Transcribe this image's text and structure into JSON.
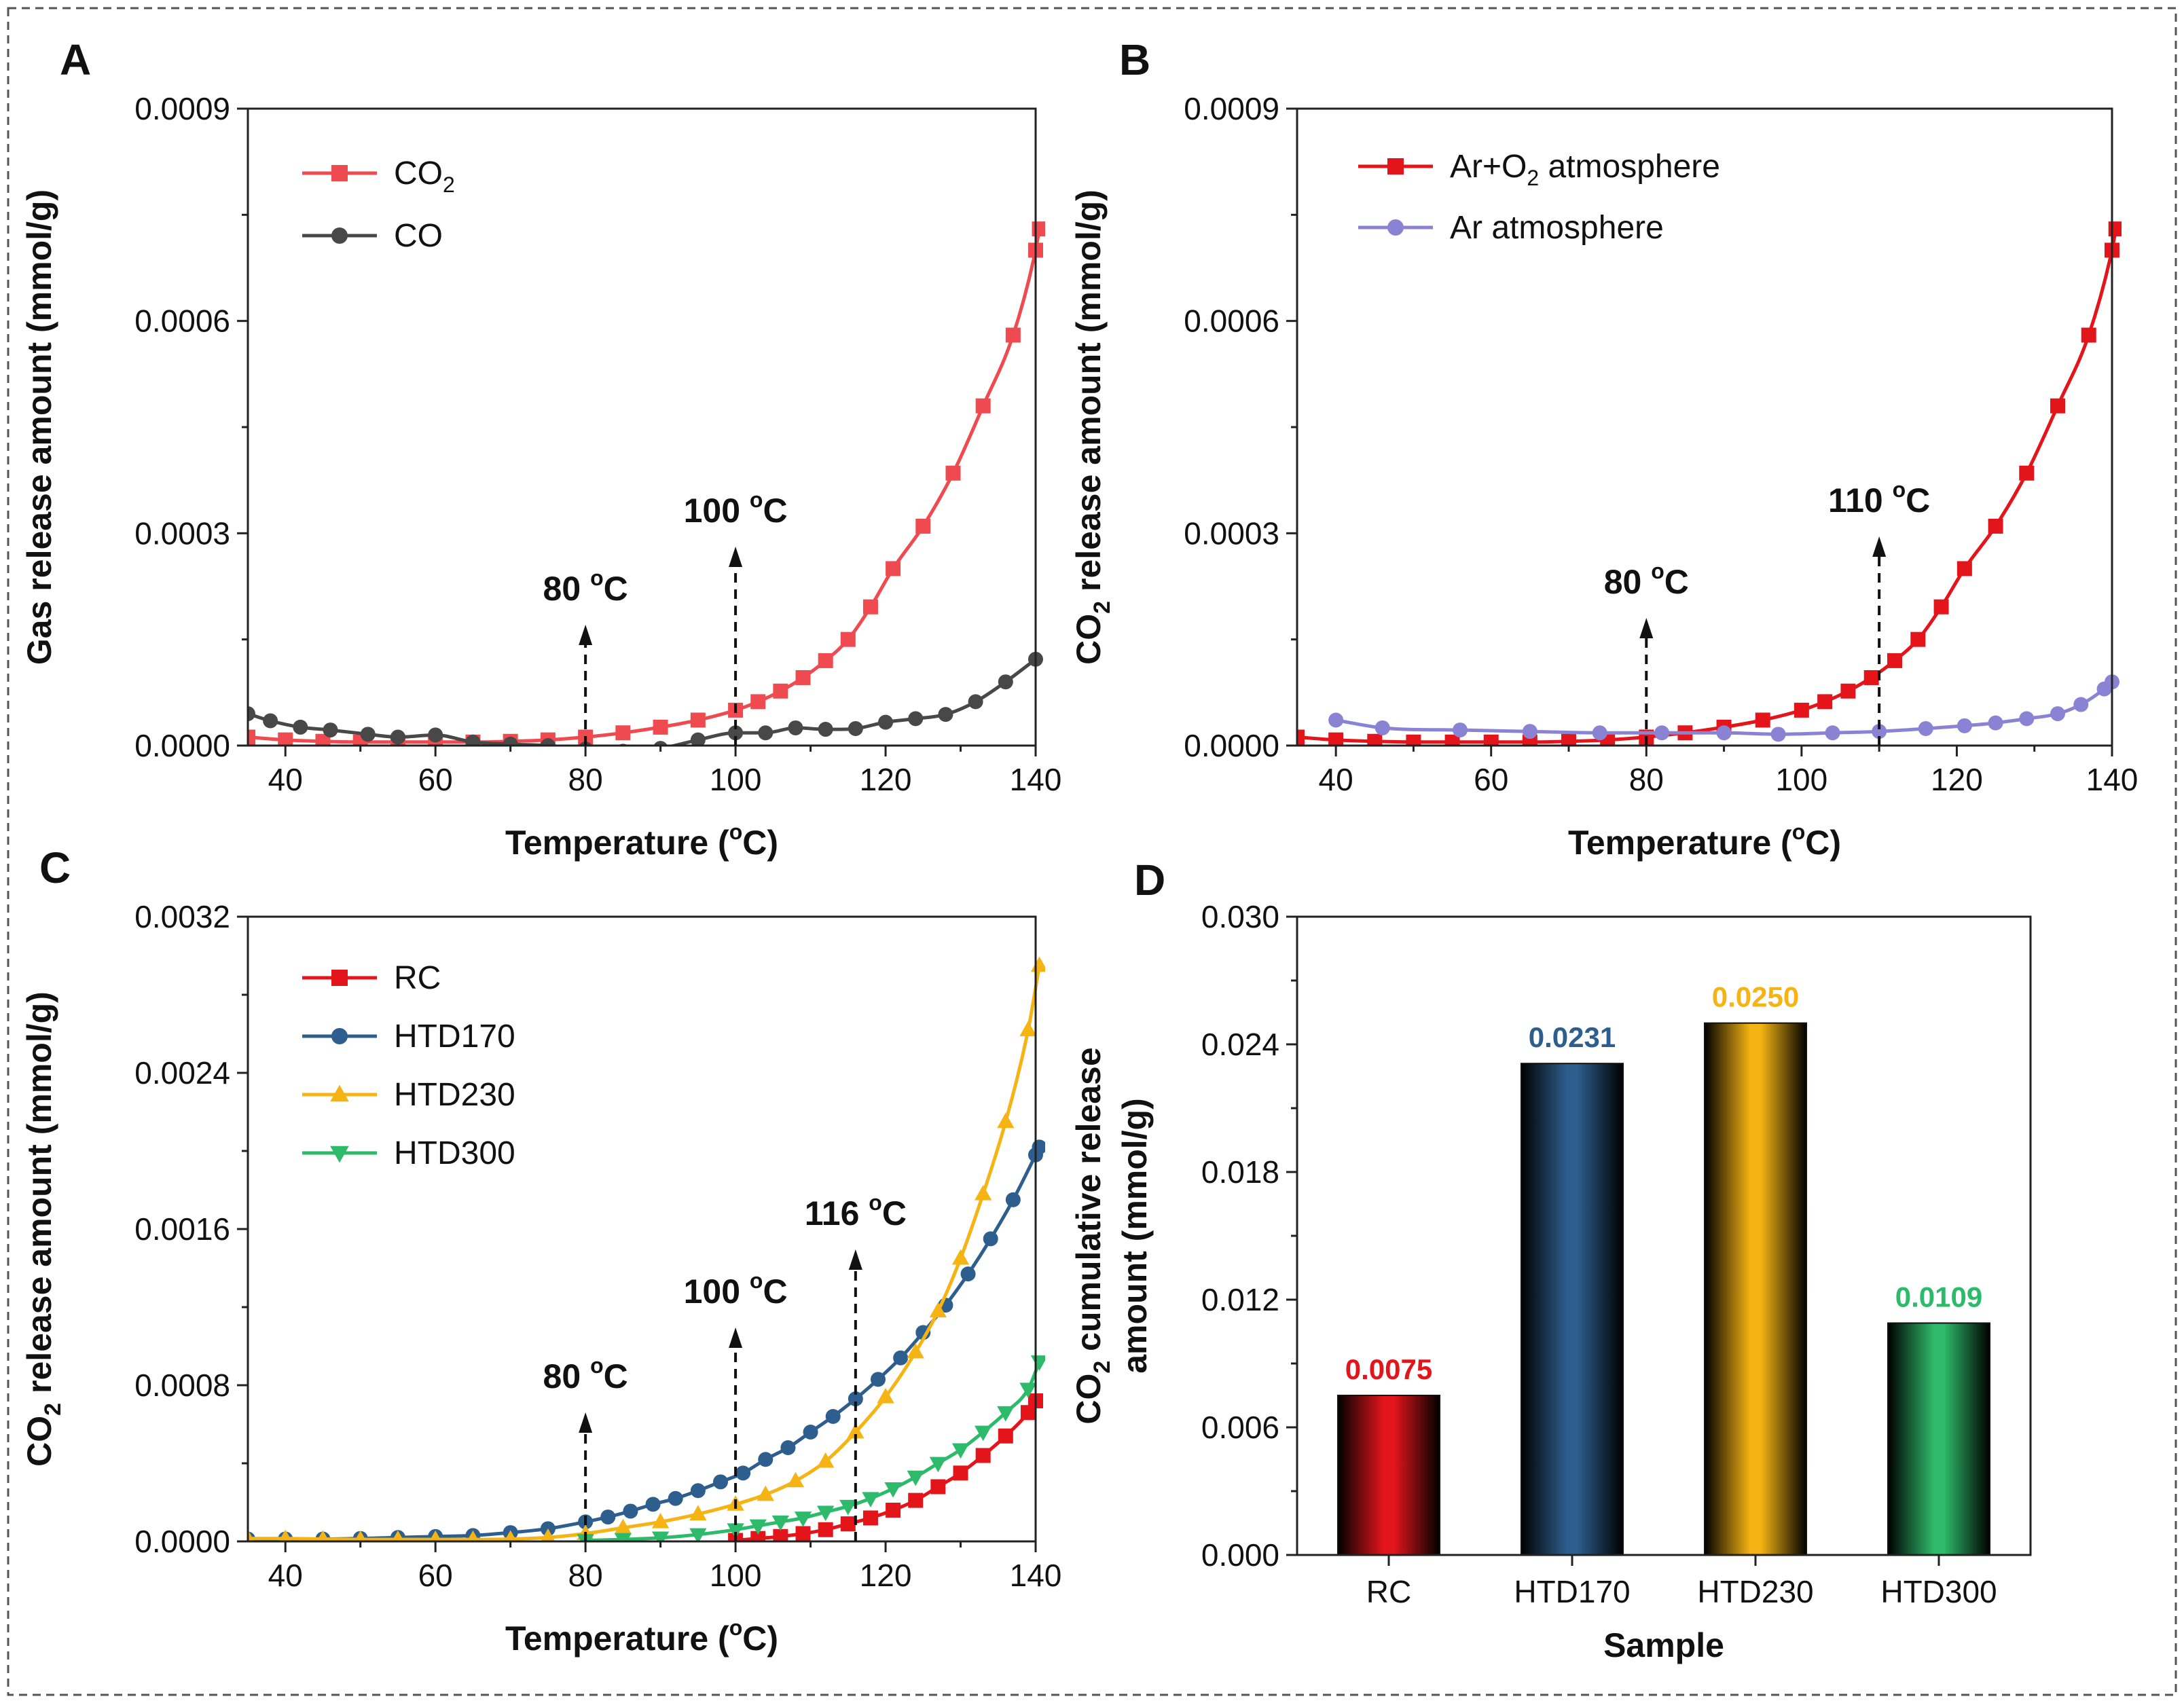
{
  "chart_data": [
    {
      "panel": "A",
      "type": "line",
      "xlabel": "Temperature (°C)",
      "ylabel": "Gas release amount (mmol/g)",
      "xlim": [
        35,
        140
      ],
      "ylim": [
        0,
        0.0009
      ],
      "x_ticks": [
        "40",
        "60",
        "80",
        "100",
        "120",
        "140"
      ],
      "y_ticks": [
        "0.0000",
        "0.0003",
        "0.0006",
        "0.0009"
      ],
      "legend_position": "top-left",
      "series": [
        {
          "name": "CO₂",
          "color": "#ef4a4f",
          "marker": "square",
          "points": [
            [
              35,
              1.2e-05
            ],
            [
              40,
              8e-06
            ],
            [
              45,
              6e-06
            ],
            [
              50,
              5e-06
            ],
            [
              55,
              5e-06
            ],
            [
              60,
              5e-06
            ],
            [
              65,
              5e-06
            ],
            [
              70,
              6e-06
            ],
            [
              75,
              8e-06
            ],
            [
              80,
              1.2e-05
            ],
            [
              85,
              1.8e-05
            ],
            [
              90,
              2.6e-05
            ],
            [
              95,
              3.6e-05
            ],
            [
              100,
              5e-05
            ],
            [
              103,
              6.2e-05
            ],
            [
              106,
              7.7e-05
            ],
            [
              109,
              9.6e-05
            ],
            [
              112,
              0.00012
            ],
            [
              115,
              0.00015
            ],
            [
              118,
              0.000196
            ],
            [
              121,
              0.00025
            ],
            [
              125,
              0.00031
            ],
            [
              129,
              0.000385
            ],
            [
              133,
              0.00048
            ],
            [
              137,
              0.00058
            ],
            [
              140,
              0.0007
            ],
            [
              140.5,
              0.00073
            ]
          ]
        },
        {
          "name": "CO",
          "color": "#484848",
          "marker": "circle",
          "points": [
            [
              35,
              4.5e-05
            ],
            [
              38,
              3.5e-05
            ],
            [
              42,
              2.6e-05
            ],
            [
              46,
              2.2e-05
            ],
            [
              51,
              1.6e-05
            ],
            [
              55,
              1.2e-05
            ],
            [
              60,
              1.5e-05
            ],
            [
              65,
              5e-06
            ],
            [
              70,
              2e-06
            ],
            [
              75,
              0.0
            ],
            [
              80,
              -5e-06
            ],
            [
              85,
              -8e-06
            ],
            [
              90,
              -4e-06
            ],
            [
              95,
              8e-06
            ],
            [
              100,
              1.8e-05
            ],
            [
              104,
              1.8e-05
            ],
            [
              108,
              2.5e-05
            ],
            [
              112,
              2.3e-05
            ],
            [
              116,
              2.4e-05
            ],
            [
              120,
              3.3e-05
            ],
            [
              124,
              3.8e-05
            ],
            [
              128,
              4.4e-05
            ],
            [
              132,
              6.2e-05
            ],
            [
              136,
              9e-05
            ],
            [
              140,
              0.000122
            ]
          ]
        }
      ],
      "annotations": [
        {
          "x": 80,
          "text": "80 °C"
        },
        {
          "x": 100,
          "text": "100 °C"
        }
      ]
    },
    {
      "panel": "B",
      "type": "line",
      "xlabel": "Temperature (°C)",
      "ylabel": "CO₂ release amount (mmol/g)",
      "xlim": [
        35,
        140
      ],
      "ylim": [
        0,
        0.0009
      ],
      "x_ticks": [
        "40",
        "60",
        "80",
        "100",
        "120",
        "140"
      ],
      "y_ticks": [
        "0.0000",
        "0.0003",
        "0.0006",
        "0.0009"
      ],
      "legend_position": "top-left",
      "series": [
        {
          "name": "Ar+O₂ atmosphere",
          "color": "#e3151b",
          "marker": "square",
          "points": [
            [
              35,
              1.2e-05
            ],
            [
              40,
              8e-06
            ],
            [
              45,
              6e-06
            ],
            [
              50,
              5e-06
            ],
            [
              55,
              5e-06
            ],
            [
              60,
              5e-06
            ],
            [
              65,
              5e-06
            ],
            [
              70,
              6e-06
            ],
            [
              75,
              8e-06
            ],
            [
              80,
              1.2e-05
            ],
            [
              85,
              1.8e-05
            ],
            [
              90,
              2.6e-05
            ],
            [
              95,
              3.6e-05
            ],
            [
              100,
              5e-05
            ],
            [
              103,
              6.2e-05
            ],
            [
              106,
              7.7e-05
            ],
            [
              109,
              9.6e-05
            ],
            [
              112,
              0.00012
            ],
            [
              115,
              0.00015
            ],
            [
              118,
              0.000196
            ],
            [
              121,
              0.00025
            ],
            [
              125,
              0.00031
            ],
            [
              129,
              0.000385
            ],
            [
              133,
              0.00048
            ],
            [
              137,
              0.00058
            ],
            [
              140,
              0.0007
            ],
            [
              140.5,
              0.00073
            ]
          ]
        },
        {
          "name": "Ar atmosphere",
          "color": "#8a83d4",
          "marker": "circle",
          "points": [
            [
              40,
              3.6e-05
            ],
            [
              46,
              2.5e-05
            ],
            [
              56,
              2.2e-05
            ],
            [
              65,
              2e-05
            ],
            [
              74,
              1.8e-05
            ],
            [
              82,
              1.8e-05
            ],
            [
              90,
              1.8e-05
            ],
            [
              97,
              1.6e-05
            ],
            [
              104,
              1.8e-05
            ],
            [
              110,
              2e-05
            ],
            [
              116,
              2.4e-05
            ],
            [
              121,
              2.8e-05
            ],
            [
              125,
              3.2e-05
            ],
            [
              129,
              3.8e-05
            ],
            [
              133,
              4.5e-05
            ],
            [
              136,
              5.8e-05
            ],
            [
              139,
              8e-05
            ],
            [
              140,
              9e-05
            ]
          ]
        }
      ],
      "annotations": [
        {
          "x": 80,
          "text": "80 °C"
        },
        {
          "x": 110,
          "text": "110 °C"
        }
      ]
    },
    {
      "panel": "C",
      "type": "line",
      "xlabel": "Temperature (°C)",
      "ylabel": "CO₂ release amount (mmol/g)",
      "xlim": [
        35,
        140
      ],
      "ylim": [
        0,
        0.0032
      ],
      "x_ticks": [
        "40",
        "60",
        "80",
        "100",
        "120",
        "140"
      ],
      "y_ticks": [
        "0.0000",
        "0.0008",
        "0.0016",
        "0.0024",
        "0.0032"
      ],
      "legend_position": "top-left",
      "series": [
        {
          "name": "RC",
          "color": "#e3151b",
          "marker": "square",
          "points": [
            [
              100,
              5e-06
            ],
            [
              103,
              1.5e-05
            ],
            [
              106,
              2.5e-05
            ],
            [
              109,
              4e-05
            ],
            [
              112,
              6e-05
            ],
            [
              115,
              9e-05
            ],
            [
              118,
              0.00012
            ],
            [
              121,
              0.00016
            ],
            [
              124,
              0.00021
            ],
            [
              127,
              0.00028
            ],
            [
              130,
              0.00035
            ],
            [
              133,
              0.00044
            ],
            [
              136,
              0.00054
            ],
            [
              139,
              0.00066
            ],
            [
              140,
              0.00072
            ]
          ]
        },
        {
          "name": "HTD170",
          "color": "#2d5e8e",
          "marker": "circle",
          "points": [
            [
              35,
              1.2e-05
            ],
            [
              40,
              1.2e-05
            ],
            [
              45,
              1.2e-05
            ],
            [
              50,
              1.5e-05
            ],
            [
              55,
              2e-05
            ],
            [
              60,
              2.5e-05
            ],
            [
              65,
              3e-05
            ],
            [
              70,
              4.5e-05
            ],
            [
              75,
              6.5e-05
            ],
            [
              80,
              0.0001
            ],
            [
              83,
              0.000125
            ],
            [
              86,
              0.000155
            ],
            [
              89,
              0.00019
            ],
            [
              92,
              0.00022
            ],
            [
              95,
              0.00026
            ],
            [
              98,
              0.000305
            ],
            [
              101,
              0.00035
            ],
            [
              104,
              0.00042
            ],
            [
              107,
              0.00048
            ],
            [
              110,
              0.00056
            ],
            [
              113,
              0.00064
            ],
            [
              116,
              0.00073
            ],
            [
              119,
              0.00083
            ],
            [
              122,
              0.00094
            ],
            [
              125,
              0.00107
            ],
            [
              128,
              0.00121
            ],
            [
              131,
              0.00137
            ],
            [
              134,
              0.00155
            ],
            [
              137,
              0.00175
            ],
            [
              140,
              0.00198
            ],
            [
              140.5,
              0.00202
            ]
          ]
        },
        {
          "name": "HTD230",
          "color": "#f5b414",
          "marker": "triangle-up",
          "points": [
            [
              35,
              1.5e-05
            ],
            [
              40,
              1.5e-05
            ],
            [
              45,
              1.2e-05
            ],
            [
              50,
              1e-05
            ],
            [
              55,
              1e-05
            ],
            [
              60,
              1e-05
            ],
            [
              65,
              1e-05
            ],
            [
              70,
              1.2e-05
            ],
            [
              75,
              2e-05
            ],
            [
              80,
              4e-05
            ],
            [
              85,
              7e-05
            ],
            [
              90,
              0.0001
            ],
            [
              95,
              0.00014
            ],
            [
              100,
              0.00019
            ],
            [
              104,
              0.00024
            ],
            [
              108,
              0.00031
            ],
            [
              112,
              0.00041
            ],
            [
              116,
              0.00056
            ],
            [
              120,
              0.00074
            ],
            [
              124,
              0.00097
            ],
            [
              127,
              0.00118
            ],
            [
              130,
              0.00145
            ],
            [
              133,
              0.00178
            ],
            [
              136,
              0.00215
            ],
            [
              139,
              0.00262
            ],
            [
              140.5,
              0.00295
            ]
          ]
        },
        {
          "name": "HTD300",
          "color": "#2dba6a",
          "marker": "triangle-down",
          "points": [
            [
              80,
              5e-06
            ],
            [
              85,
              1e-05
            ],
            [
              90,
              1.8e-05
            ],
            [
              95,
              3.5e-05
            ],
            [
              100,
              6e-05
            ],
            [
              103,
              8e-05
            ],
            [
              106,
              0.0001
            ],
            [
              109,
              0.00012
            ],
            [
              112,
              0.00015
            ],
            [
              115,
              0.00018
            ],
            [
              118,
              0.00022
            ],
            [
              121,
              0.00027
            ],
            [
              124,
              0.00033
            ],
            [
              127,
              0.0004
            ],
            [
              130,
              0.00047
            ],
            [
              133,
              0.00056
            ],
            [
              136,
              0.00066
            ],
            [
              139,
              0.00078
            ],
            [
              140.5,
              0.00092
            ]
          ]
        }
      ],
      "annotations": [
        {
          "x": 80,
          "text": "80 °C"
        },
        {
          "x": 100,
          "text": "100 °C"
        },
        {
          "x": 116,
          "text": "116 °C"
        }
      ]
    },
    {
      "panel": "D",
      "type": "bar",
      "xlabel": "Sample",
      "ylabel": "CO₂ cumulative release amount (mmol/g)",
      "ylim": [
        0,
        0.03
      ],
      "y_ticks": [
        "0.000",
        "0.006",
        "0.012",
        "0.018",
        "0.024",
        "0.030"
      ],
      "categories": [
        "RC",
        "HTD170",
        "HTD230",
        "HTD300"
      ],
      "values": [
        0.0075,
        0.0231,
        0.025,
        0.0109
      ],
      "value_labels": [
        "0.0075",
        "0.0231",
        "0.0250",
        "0.0109"
      ],
      "colors": [
        "#e3151b",
        "#2d5e8e",
        "#f5b414",
        "#2dba6a"
      ]
    }
  ],
  "labels": {
    "temperature_main": "Temperature (",
    "temperature_unit": "C)",
    "degree": "o",
    "gas_release": "Gas release amount (mmol/g)",
    "co2_main": "CO",
    "co2_sub": "2",
    "release_rest": " release amount (mmol/g)",
    "cumulative_line1_rest": " cumulative release",
    "cumulative_line2": "amount (mmol/g)",
    "sample": "Sample"
  }
}
